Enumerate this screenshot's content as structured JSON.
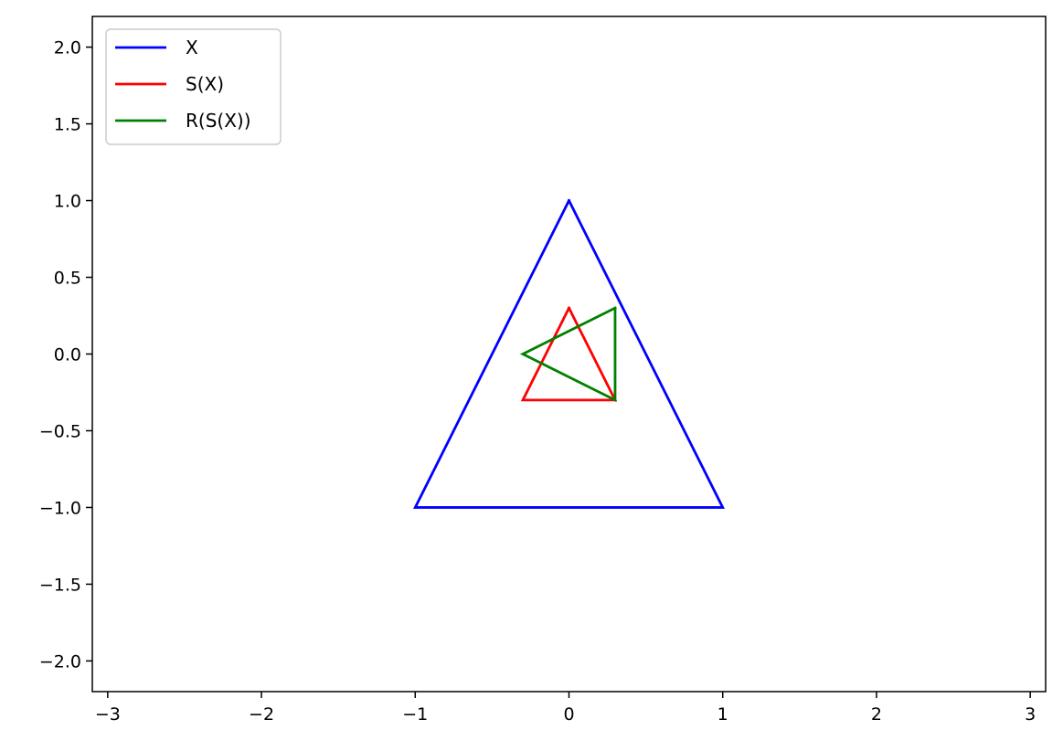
{
  "chart_data": {
    "type": "line",
    "title": "",
    "xlabel": "",
    "ylabel": "",
    "xlim": [
      -3.1,
      3.1
    ],
    "ylim": [
      -2.2,
      2.2
    ],
    "grid": false,
    "legend_position": "top-left",
    "x_ticks": [
      {
        "value": -3,
        "label": "−3"
      },
      {
        "value": -2,
        "label": "−2"
      },
      {
        "value": -1,
        "label": "−1"
      },
      {
        "value": 0,
        "label": "0"
      },
      {
        "value": 1,
        "label": "1"
      },
      {
        "value": 2,
        "label": "2"
      },
      {
        "value": 3,
        "label": "3"
      }
    ],
    "y_ticks": [
      {
        "value": 2.0,
        "label": "2.0"
      },
      {
        "value": 1.5,
        "label": "1.5"
      },
      {
        "value": 1.0,
        "label": "1.0"
      },
      {
        "value": 0.5,
        "label": "0.5"
      },
      {
        "value": 0.0,
        "label": "0.0"
      },
      {
        "value": -0.5,
        "label": "−0.5"
      },
      {
        "value": -1.0,
        "label": "−1.0"
      },
      {
        "value": -1.5,
        "label": "−1.5"
      },
      {
        "value": -2.0,
        "label": "−2.0"
      }
    ],
    "series": [
      {
        "name": "X",
        "color": "#0000ff",
        "x": [
          0,
          1,
          -1,
          0
        ],
        "y": [
          1,
          -1,
          -1,
          1
        ]
      },
      {
        "name": "S(X)",
        "color": "#ff0000",
        "x": [
          0,
          0.3,
          -0.3,
          0
        ],
        "y": [
          0.3,
          -0.3,
          -0.3,
          0.3
        ]
      },
      {
        "name": "R(S(X))",
        "color": "#008000",
        "x": [
          0.3,
          0.3,
          -0.3,
          0.3
        ],
        "y": [
          0.3,
          -0.3,
          0,
          0.3
        ]
      }
    ]
  }
}
